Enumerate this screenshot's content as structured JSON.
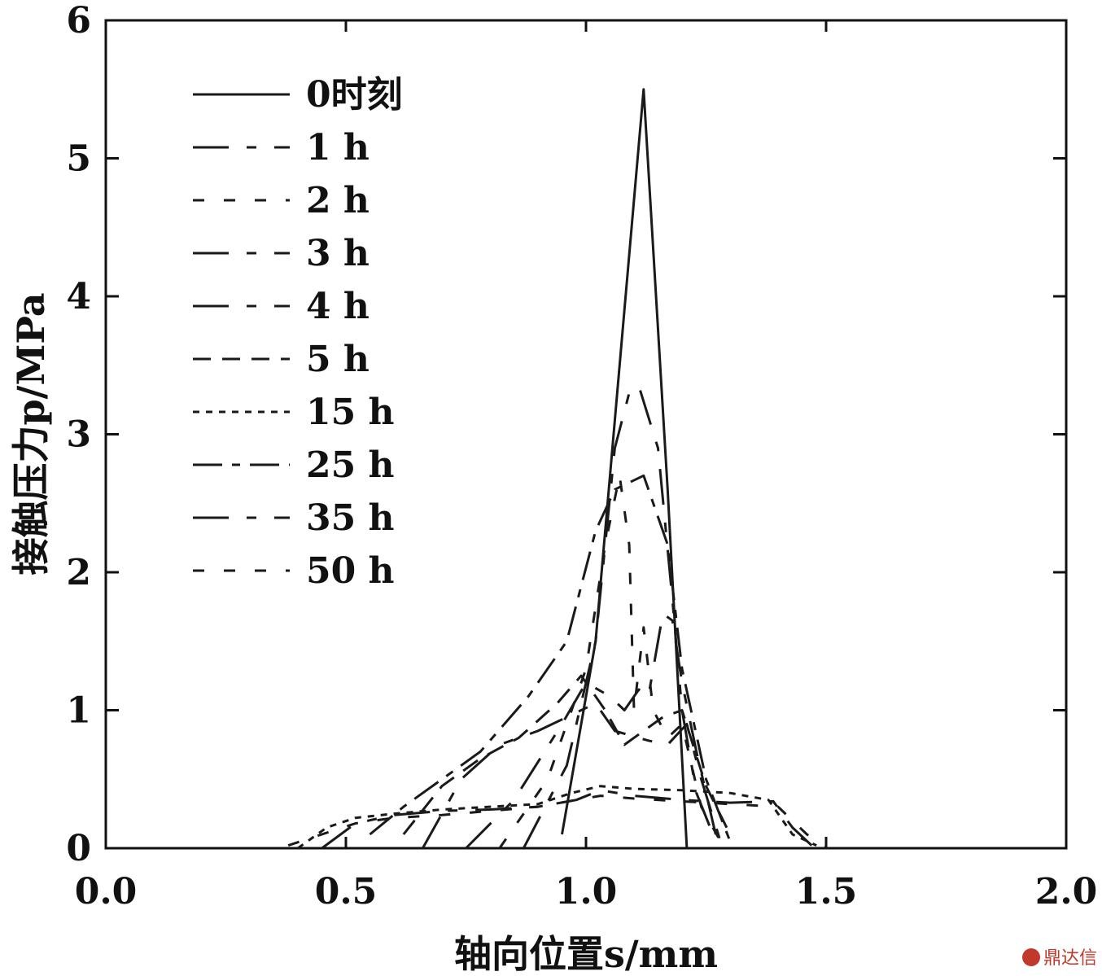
{
  "chart_data": {
    "type": "line",
    "xlabel": "轴向位置s/mm",
    "ylabel": "接触压力p/MPa",
    "xlim": [
      0,
      2
    ],
    "ylim": [
      0,
      6
    ],
    "xticks": [
      0,
      0.5,
      1,
      1.5,
      2
    ],
    "xtick_labels": [
      "0.0",
      "0.5",
      "1.0",
      "1.5",
      "2.0"
    ],
    "yticks": [
      0,
      1,
      2,
      3,
      4,
      5,
      6
    ],
    "ytick_labels": [
      "0",
      "1",
      "2",
      "3",
      "4",
      "5",
      "6"
    ],
    "grid": false,
    "legend_position": "top-left",
    "series": [
      {
        "name": "0时刻",
        "dash": "solid",
        "x": [
          0.95,
          1.02,
          1.08,
          1.12,
          1.17,
          1.21
        ],
        "y": [
          0.1,
          1.5,
          3.9,
          5.5,
          2.6,
          0.0
        ]
      },
      {
        "name": "1 h",
        "dash": "long-short",
        "x": [
          0.87,
          0.96,
          1.02,
          1.06,
          1.09,
          1.11,
          1.15,
          1.18,
          1.2,
          1.23,
          1.27
        ],
        "y": [
          0.0,
          0.6,
          1.5,
          2.9,
          3.3,
          3.35,
          2.9,
          1.8,
          1.0,
          0.4,
          0.05
        ]
      },
      {
        "name": "2 h",
        "dash": "short",
        "x": [
          0.82,
          0.92,
          1.0,
          1.04,
          1.07,
          1.09,
          1.1,
          1.12,
          1.14,
          1.17,
          1.2,
          1.24,
          1.28
        ],
        "y": [
          0.0,
          0.5,
          1.3,
          2.2,
          2.7,
          2.2,
          1.0,
          1.6,
          1.0,
          0.8,
          0.9,
          0.3,
          0.05
        ]
      },
      {
        "name": "3 h",
        "dash": "long-short",
        "x": [
          0.75,
          0.85,
          0.95,
          1.0,
          1.05,
          1.08,
          1.11,
          1.13,
          1.16,
          1.18,
          1.2,
          1.23,
          1.27
        ],
        "y": [
          0.0,
          0.35,
          0.9,
          1.2,
          1.1,
          1.0,
          1.15,
          1.1,
          1.7,
          1.65,
          1.2,
          0.7,
          0.1
        ]
      },
      {
        "name": "4 h",
        "dash": "long-short",
        "x": [
          0.66,
          0.74,
          0.82,
          0.9,
          0.96,
          1.02,
          1.06,
          1.09,
          1.13,
          1.17,
          1.21,
          1.24,
          1.28
        ],
        "y": [
          0.0,
          0.5,
          0.75,
          0.85,
          0.95,
          1.05,
          0.85,
          0.82,
          0.78,
          0.75,
          0.9,
          0.5,
          0.05
        ]
      },
      {
        "name": "5 h",
        "dash": "dashed",
        "x": [
          0.62,
          0.7,
          0.78,
          0.86,
          0.94,
          0.99,
          1.04,
          1.08,
          1.12,
          1.16,
          1.2,
          1.25,
          1.3
        ],
        "y": [
          0.1,
          0.45,
          0.65,
          0.8,
          1.05,
          1.25,
          1.0,
          0.75,
          0.85,
          0.95,
          1.0,
          0.45,
          0.1
        ]
      },
      {
        "name": "15 h",
        "dash": "dotted",
        "x": [
          0.4,
          0.46,
          0.52,
          0.6,
          0.7,
          0.8,
          0.9,
          0.97,
          1.03,
          1.1,
          1.2,
          1.3,
          1.38,
          1.43,
          1.48
        ],
        "y": [
          0.0,
          0.15,
          0.22,
          0.25,
          0.28,
          0.3,
          0.32,
          0.4,
          0.45,
          0.43,
          0.42,
          0.4,
          0.35,
          0.1,
          0.02
        ]
      },
      {
        "name": "25 h",
        "dash": "dash-dot",
        "x": [
          0.55,
          0.62,
          0.7,
          0.78,
          0.88,
          0.96,
          1.02,
          1.06,
          1.12,
          1.17,
          1.2,
          1.25,
          1.3
        ],
        "y": [
          0.1,
          0.3,
          0.5,
          0.7,
          1.1,
          1.5,
          2.3,
          2.6,
          2.7,
          2.2,
          1.3,
          0.5,
          0.05
        ]
      },
      {
        "name": "35 h",
        "dash": "long-short",
        "x": [
          0.45,
          0.52,
          0.6,
          0.7,
          0.8,
          0.9,
          0.98,
          1.03,
          1.1,
          1.2,
          1.3,
          1.39,
          1.43,
          1.47
        ],
        "y": [
          0.0,
          0.18,
          0.24,
          0.27,
          0.28,
          0.3,
          0.35,
          0.42,
          0.38,
          0.35,
          0.33,
          0.34,
          0.15,
          0.02
        ]
      },
      {
        "name": "50 h",
        "dash": "short",
        "x": [
          0.38,
          0.45,
          0.52,
          0.6,
          0.7,
          0.8,
          0.9,
          0.98,
          1.03,
          1.1,
          1.2,
          1.3,
          1.4,
          1.46,
          1.5
        ],
        "y": [
          0.02,
          0.1,
          0.18,
          0.22,
          0.24,
          0.27,
          0.3,
          0.35,
          0.38,
          0.36,
          0.34,
          0.32,
          0.3,
          0.1,
          0.0
        ]
      }
    ]
  },
  "watermark": {
    "text": "鼎达信"
  }
}
